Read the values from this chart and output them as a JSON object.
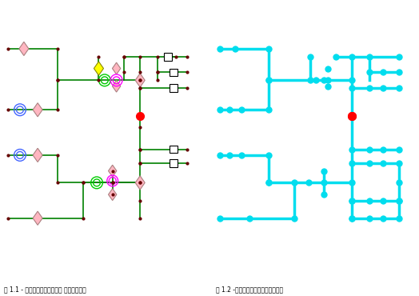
{
  "fig_width": 5.24,
  "fig_height": 3.7,
  "dpi": 100,
  "bg_color": "#ffffff",
  "border_color": "#000000",
  "green": "#008000",
  "cyan": "#00ccff",
  "red": "#ff0000",
  "yellow": "#ffff00",
  "pink": "#ffb6c1",
  "magenta": "#ff00ff",
  "blue_circle": "#4466ff",
  "dark_node": "#660000",
  "caption1": "図 1.1 - 当初のスケマティック ダイアグラム",
  "caption2": "図 1.2 -【接続解析】トレースの結果",
  "caption_fontsize": 5.5
}
